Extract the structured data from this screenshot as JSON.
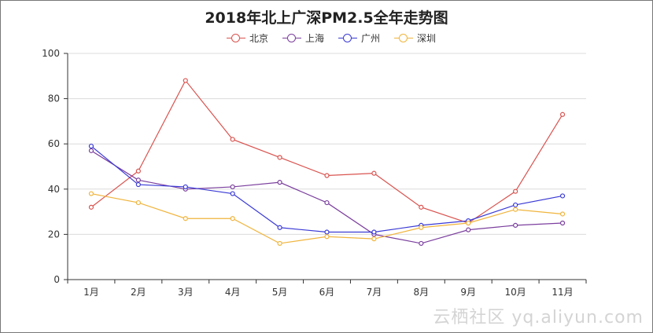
{
  "chart_data": {
    "type": "line",
    "title": "2018年北上广深PM2.5全年走势图",
    "categories": [
      "1月",
      "2月",
      "3月",
      "4月",
      "5月",
      "6月",
      "7月",
      "8月",
      "9月",
      "10月",
      "11月"
    ],
    "ylim": [
      0,
      100
    ],
    "yticks": [
      0,
      20,
      40,
      60,
      80,
      100
    ],
    "grid": true,
    "legend_position": "top-center",
    "series": [
      {
        "name": "北京",
        "color": "#d9534f",
        "values": [
          32,
          48,
          88,
          62,
          54,
          46,
          47,
          32,
          25,
          39,
          73
        ]
      },
      {
        "name": "上海",
        "color": "#7b3f9e",
        "values": [
          57,
          44,
          40,
          41,
          43,
          34,
          20,
          16,
          22,
          24,
          25
        ]
      },
      {
        "name": "广州",
        "color": "#3a3ad6",
        "values": [
          59,
          42,
          41,
          38,
          23,
          21,
          21,
          24,
          26,
          33,
          37
        ]
      },
      {
        "name": "深圳",
        "color": "#f0b43c",
        "values": [
          38,
          34,
          27,
          27,
          16,
          19,
          18,
          23,
          25,
          31,
          29
        ]
      }
    ]
  },
  "legend_icons": [
    "circle-line",
    "circle-line",
    "circle-line",
    "circle-line"
  ],
  "watermark": "云栖社区 yq.aliyun.com"
}
